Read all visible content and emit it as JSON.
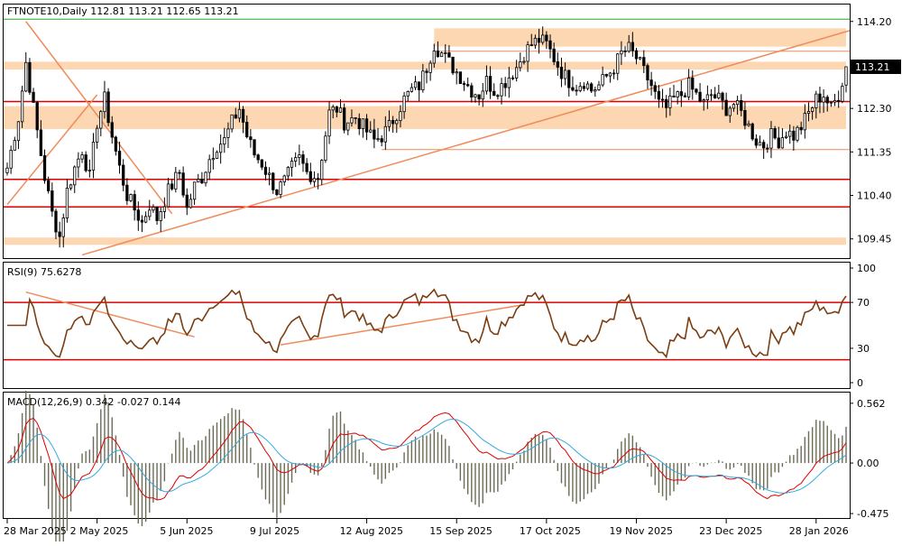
{
  "colors": {
    "background": "#ffffff",
    "frame": "#000000",
    "candle": "#000000",
    "support_resistance": "#dd0000",
    "zone_fill": "#fcd7b2",
    "trendline": "#f08a5a",
    "top_line": "#22aa22",
    "price_tag_bg": "#000000",
    "rsi_line": "#7a3e12",
    "macd_line": "#dd0000",
    "signal_line": "#33aadd",
    "histogram": "#6b6b55",
    "grid": "#cccccc"
  },
  "main_panel": {
    "header": "FTNOTE10,Daily  112.81 113.21 112.65 113.21",
    "price_tag": "113.21",
    "y_ticks": [
      "114.20",
      "113.25",
      "112.30",
      "111.35",
      "110.40",
      "109.45"
    ],
    "y_tick_values": [
      114.2,
      113.25,
      112.3,
      111.35,
      110.4,
      109.45
    ],
    "ylim": [
      109.05,
      114.55
    ]
  },
  "rsi_panel": {
    "label": "RSI(9) 75.6278",
    "y_ticks": [
      "100",
      "70",
      "30",
      "0"
    ],
    "levels": [
      70,
      20
    ],
    "ylim": [
      0,
      100
    ]
  },
  "macd_panel": {
    "label": "MACD(12,26,9) 0.342 -0.027 0.144",
    "y_ticks": [
      "0.562",
      "0.00",
      "-0.475"
    ],
    "y_tick_values": [
      0.562,
      0.0,
      -0.475
    ],
    "ylim": [
      -0.5,
      0.62
    ]
  },
  "x_axis": {
    "labels": [
      "28 Mar 2025",
      "2 May 2025",
      "5 Jun 2025",
      "9 Jul 2025",
      "12 Aug 2025",
      "15 Sep 2025",
      "17 Oct 2025",
      "19 Nov 2025",
      "23 Dec 2025",
      "28 Jan 2026"
    ],
    "label_index": [
      0,
      24,
      48,
      72,
      96,
      120,
      144,
      168,
      192,
      216
    ]
  },
  "chart_data": {
    "type": "candlestick",
    "title": "FTNOTE10,Daily",
    "last_ohlc": {
      "open": 112.81,
      "high": 113.21,
      "low": 112.65,
      "close": 113.21
    },
    "bar_count": 225,
    "close_anchors": [
      [
        0,
        111.0
      ],
      [
        3,
        112.1
      ],
      [
        5,
        113.3
      ],
      [
        7,
        112.3
      ],
      [
        10,
        110.8
      ],
      [
        12,
        110.0
      ],
      [
        14,
        109.5
      ],
      [
        16,
        110.5
      ],
      [
        18,
        111.0
      ],
      [
        20,
        111.4
      ],
      [
        22,
        110.8
      ],
      [
        24,
        112.0
      ],
      [
        26,
        112.5
      ],
      [
        28,
        111.7
      ],
      [
        30,
        111.0
      ],
      [
        32,
        110.4
      ],
      [
        34,
        110.1
      ],
      [
        36,
        109.8
      ],
      [
        38,
        110.2
      ],
      [
        40,
        109.9
      ],
      [
        43,
        110.5
      ],
      [
        46,
        110.9
      ],
      [
        48,
        110.1
      ],
      [
        50,
        110.6
      ],
      [
        52,
        110.8
      ],
      [
        54,
        111.2
      ],
      [
        56,
        111.5
      ],
      [
        58,
        111.6
      ],
      [
        60,
        112.0
      ],
      [
        62,
        112.3
      ],
      [
        64,
        111.7
      ],
      [
        66,
        111.3
      ],
      [
        68,
        111.1
      ],
      [
        70,
        110.8
      ],
      [
        72,
        110.5
      ],
      [
        74,
        110.7
      ],
      [
        76,
        111.0
      ],
      [
        78,
        111.2
      ],
      [
        80,
        110.9
      ],
      [
        83,
        110.8
      ],
      [
        86,
        112.2
      ],
      [
        88,
        112.3
      ],
      [
        90,
        112.0
      ],
      [
        93,
        112.1
      ],
      [
        96,
        111.8
      ],
      [
        98,
        111.6
      ],
      [
        100,
        111.7
      ],
      [
        102,
        111.9
      ],
      [
        104,
        112.2
      ],
      [
        106,
        112.5
      ],
      [
        108,
        112.7
      ],
      [
        110,
        112.8
      ],
      [
        112,
        113.2
      ],
      [
        114,
        113.7
      ],
      [
        116,
        113.5
      ],
      [
        118,
        113.3
      ],
      [
        120,
        113.1
      ],
      [
        122,
        112.9
      ],
      [
        124,
        112.7
      ],
      [
        126,
        112.6
      ],
      [
        128,
        112.9
      ],
      [
        130,
        112.7
      ],
      [
        132,
        112.8
      ],
      [
        134,
        113.0
      ],
      [
        136,
        113.2
      ],
      [
        138,
        113.5
      ],
      [
        140,
        113.7
      ],
      [
        142,
        113.8
      ],
      [
        144,
        113.7
      ],
      [
        146,
        113.4
      ],
      [
        148,
        113.1
      ],
      [
        150,
        112.9
      ],
      [
        152,
        112.8
      ],
      [
        154,
        112.9
      ],
      [
        156,
        112.7
      ],
      [
        158,
        112.8
      ],
      [
        160,
        113.0
      ],
      [
        162,
        113.2
      ],
      [
        164,
        113.5
      ],
      [
        166,
        113.6
      ],
      [
        168,
        113.4
      ],
      [
        170,
        113.1
      ],
      [
        172,
        112.8
      ],
      [
        174,
        112.4
      ],
      [
        176,
        112.3
      ],
      [
        178,
        112.5
      ],
      [
        180,
        112.6
      ],
      [
        182,
        112.8
      ],
      [
        184,
        112.6
      ],
      [
        186,
        112.4
      ],
      [
        188,
        112.6
      ],
      [
        190,
        112.5
      ],
      [
        192,
        112.3
      ],
      [
        194,
        112.4
      ],
      [
        196,
        112.2
      ],
      [
        198,
        111.9
      ],
      [
        200,
        111.6
      ],
      [
        202,
        111.5
      ],
      [
        204,
        111.7
      ],
      [
        206,
        111.6
      ],
      [
        208,
        111.8
      ],
      [
        210,
        111.7
      ],
      [
        212,
        111.9
      ],
      [
        214,
        112.2
      ],
      [
        216,
        112.5
      ],
      [
        218,
        112.6
      ],
      [
        220,
        112.3
      ],
      [
        222,
        112.6
      ],
      [
        224,
        113.21
      ]
    ],
    "horizontal_levels": [
      112.45,
      110.75,
      110.15,
      114.25
    ],
    "zones": [
      {
        "from": 113.15,
        "to": 113.32
      },
      {
        "from": 111.85,
        "to": 112.35
      },
      {
        "from": 109.32,
        "to": 109.48
      },
      {
        "from": 113.65,
        "to": 114.05
      }
    ]
  }
}
